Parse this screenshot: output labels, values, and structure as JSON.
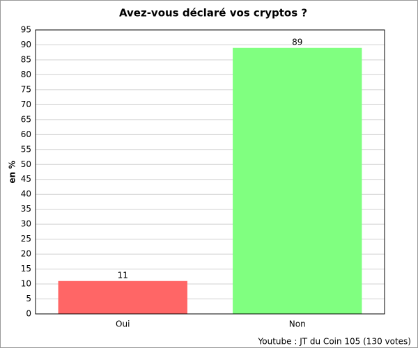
{
  "chart_data": {
    "type": "bar",
    "title": "Avez-vous déclaré vos cryptos ?",
    "y_label": "en %",
    "categories": [
      "Oui",
      "Non"
    ],
    "values": [
      11,
      89
    ],
    "colors": [
      "#ff6666",
      "#80ff80"
    ],
    "ylim": [
      0,
      95
    ],
    "yticks": [
      0,
      5,
      10,
      15,
      20,
      25,
      30,
      35,
      40,
      45,
      50,
      55,
      60,
      65,
      70,
      75,
      80,
      85,
      90,
      95
    ],
    "grid": true,
    "source": "Youtube : JT du Coin 105 (130 votes)"
  }
}
